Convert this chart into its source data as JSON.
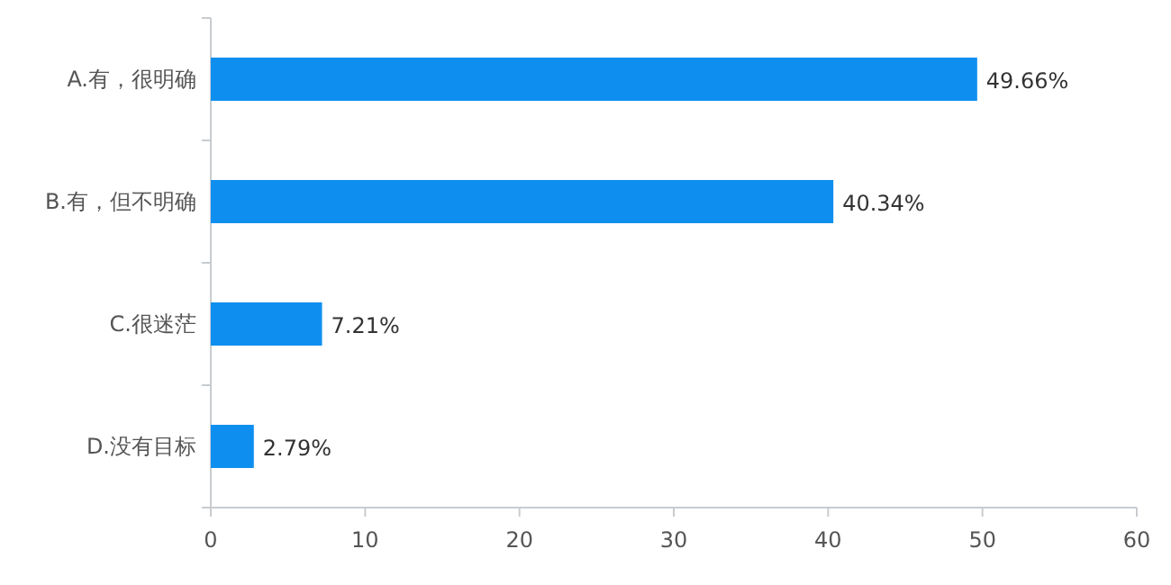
{
  "chart_data": {
    "type": "bar",
    "orientation": "horizontal",
    "categories": [
      "A.有，很明确",
      "B.有，但不明确",
      "C.很迷茫",
      "D.没有目标"
    ],
    "values": [
      49.66,
      40.34,
      7.21,
      2.79
    ],
    "value_labels": [
      "49.66%",
      "40.34%",
      "7.21%",
      "2.79%"
    ],
    "color": "#0e8ff0",
    "xlim": [
      0,
      60
    ],
    "xticks": [
      0,
      10,
      20,
      30,
      40,
      50,
      60
    ],
    "grid": false
  }
}
